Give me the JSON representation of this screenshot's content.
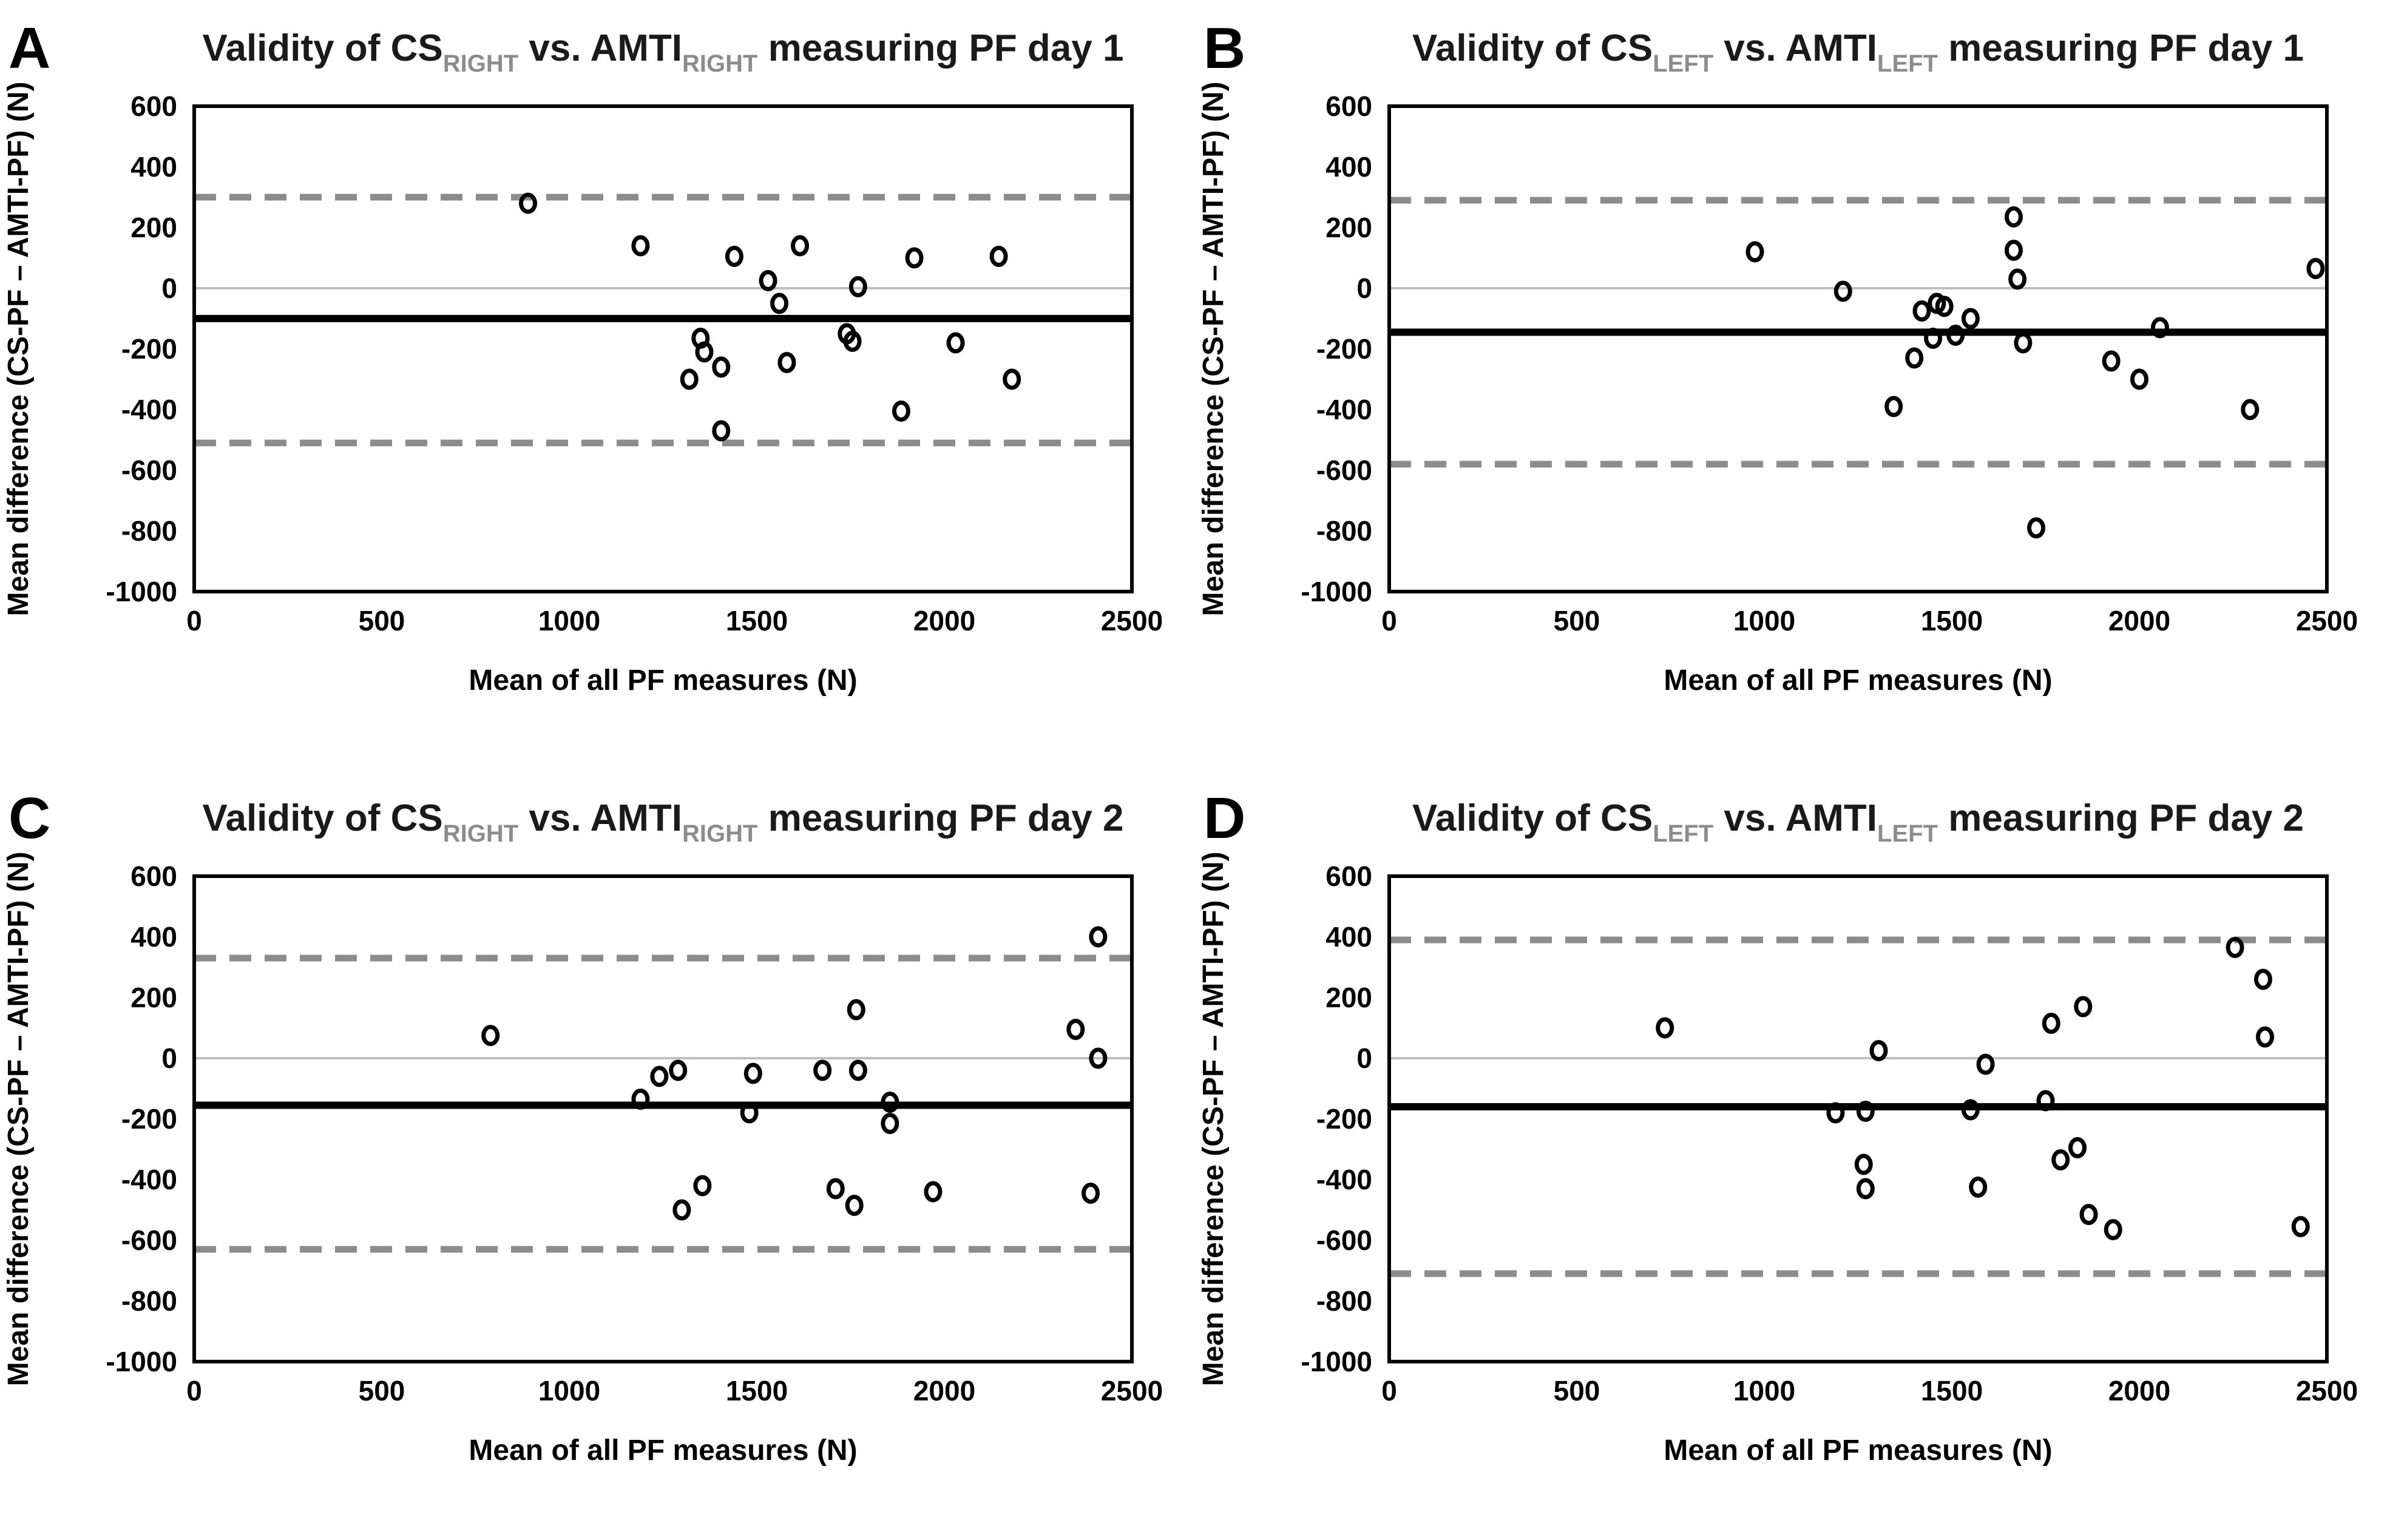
{
  "figure": {
    "background": "#ffffff",
    "colors": {
      "title_text": "#1a1a1a",
      "subscript_text": "#8c8c8c",
      "panel_letter": "#000000",
      "axis_text": "#000000",
      "box_border": "#000000",
      "zero_line": "#bfbfbf",
      "mean_line": "#000000",
      "loa_line": "#8c8c8c",
      "marker_stroke": "#000000"
    },
    "axes_common": {
      "x_label": "Mean of all PF measures (N)",
      "y_label": "Mean difference (CS-PF – AMTI-PF) (N)",
      "x_ticks": [
        0,
        500,
        1000,
        1500,
        2000,
        2500
      ],
      "y_ticks": [
        600,
        400,
        200,
        0,
        -200,
        -400,
        -600,
        -800,
        -1000
      ],
      "xlim": [
        0,
        2500
      ],
      "ylim": [
        -1000,
        600
      ],
      "grid": "zero-line only"
    }
  },
  "chart_data": [
    {
      "id": "A",
      "type": "scatter",
      "panel_letter": "A",
      "title_parts": [
        {
          "text": "Validity of CS"
        },
        {
          "text": "RIGHT",
          "sub": true
        },
        {
          "text": " vs. AMTI"
        },
        {
          "text": "RIGHT",
          "sub": true
        },
        {
          "text": " measuring PF day 1"
        }
      ],
      "mean_bias": -100,
      "upper_loa": 300,
      "lower_loa": -510,
      "points": [
        [
          890,
          280
        ],
        [
          1190,
          140
        ],
        [
          1320,
          -300
        ],
        [
          1350,
          -165
        ],
        [
          1360,
          -210
        ],
        [
          1405,
          -260
        ],
        [
          1405,
          -470
        ],
        [
          1440,
          105
        ],
        [
          1530,
          25
        ],
        [
          1560,
          -50
        ],
        [
          1580,
          -245
        ],
        [
          1615,
          140
        ],
        [
          1740,
          -150
        ],
        [
          1755,
          -175
        ],
        [
          1770,
          5
        ],
        [
          1885,
          -405
        ],
        [
          1920,
          100
        ],
        [
          2030,
          -180
        ],
        [
          2145,
          105
        ],
        [
          2180,
          -300
        ]
      ]
    },
    {
      "id": "B",
      "type": "scatter",
      "panel_letter": "B",
      "title_parts": [
        {
          "text": "Validity of CS"
        },
        {
          "text": "LEFT",
          "sub": true
        },
        {
          "text": " vs. AMTI"
        },
        {
          "text": "LEFT",
          "sub": true
        },
        {
          "text": " measuring PF day 1"
        }
      ],
      "mean_bias": -145,
      "upper_loa": 290,
      "lower_loa": -580,
      "points": [
        [
          975,
          120
        ],
        [
          1210,
          -10
        ],
        [
          1345,
          -390
        ],
        [
          1400,
          -230
        ],
        [
          1420,
          -75
        ],
        [
          1450,
          -165
        ],
        [
          1460,
          -50
        ],
        [
          1480,
          -60
        ],
        [
          1510,
          -155
        ],
        [
          1550,
          -100
        ],
        [
          1665,
          235
        ],
        [
          1665,
          125
        ],
        [
          1675,
          30
        ],
        [
          1690,
          -180
        ],
        [
          1725,
          -790
        ],
        [
          1925,
          -240
        ],
        [
          2000,
          -300
        ],
        [
          2055,
          -130
        ],
        [
          2295,
          -400
        ],
        [
          2470,
          65
        ]
      ]
    },
    {
      "id": "C",
      "type": "scatter",
      "panel_letter": "C",
      "title_parts": [
        {
          "text": "Validity of CS"
        },
        {
          "text": "RIGHT",
          "sub": true
        },
        {
          "text": " vs. AMTI"
        },
        {
          "text": "RIGHT",
          "sub": true
        },
        {
          "text": " measuring PF day 2"
        }
      ],
      "mean_bias": -155,
      "upper_loa": 330,
      "lower_loa": -630,
      "points": [
        [
          790,
          75
        ],
        [
          1190,
          -135
        ],
        [
          1240,
          -60
        ],
        [
          1290,
          -40
        ],
        [
          1300,
          -500
        ],
        [
          1355,
          -420
        ],
        [
          1480,
          -180
        ],
        [
          1490,
          -50
        ],
        [
          1675,
          -40
        ],
        [
          1710,
          -430
        ],
        [
          1760,
          -485
        ],
        [
          1765,
          160
        ],
        [
          1770,
          -40
        ],
        [
          1855,
          -145
        ],
        [
          1855,
          -215
        ],
        [
          1970,
          -440
        ],
        [
          2350,
          95
        ],
        [
          2390,
          -445
        ],
        [
          2410,
          400
        ],
        [
          2410,
          0
        ]
      ]
    },
    {
      "id": "D",
      "type": "scatter",
      "panel_letter": "D",
      "title_parts": [
        {
          "text": "Validity of CS"
        },
        {
          "text": "LEFT",
          "sub": true
        },
        {
          "text": " vs. AMTI"
        },
        {
          "text": "LEFT",
          "sub": true
        },
        {
          "text": " measuring PF day 2"
        }
      ],
      "mean_bias": -160,
      "upper_loa": 390,
      "lower_loa": -710,
      "points": [
        [
          735,
          100
        ],
        [
          1190,
          -180
        ],
        [
          1265,
          -350
        ],
        [
          1270,
          -175
        ],
        [
          1270,
          -430
        ],
        [
          1305,
          25
        ],
        [
          1550,
          -170
        ],
        [
          1570,
          -425
        ],
        [
          1590,
          -20
        ],
        [
          1750,
          -140
        ],
        [
          1765,
          115
        ],
        [
          1790,
          -335
        ],
        [
          1835,
          -295
        ],
        [
          1850,
          170
        ],
        [
          1865,
          -515
        ],
        [
          1930,
          -565
        ],
        [
          2255,
          365
        ],
        [
          2330,
          260
        ],
        [
          2335,
          70
        ],
        [
          2430,
          -555
        ]
      ]
    }
  ]
}
